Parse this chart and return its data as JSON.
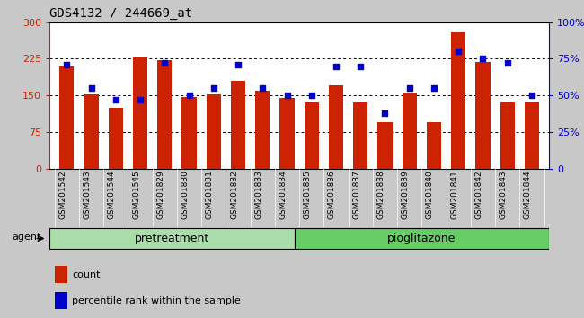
{
  "title": "GDS4132 / 244669_at",
  "samples": [
    "GSM201542",
    "GSM201543",
    "GSM201544",
    "GSM201545",
    "GSM201829",
    "GSM201830",
    "GSM201831",
    "GSM201832",
    "GSM201833",
    "GSM201834",
    "GSM201835",
    "GSM201836",
    "GSM201837",
    "GSM201838",
    "GSM201839",
    "GSM201840",
    "GSM201841",
    "GSM201842",
    "GSM201843",
    "GSM201844"
  ],
  "counts": [
    210,
    152,
    125,
    228,
    222,
    147,
    153,
    180,
    160,
    145,
    135,
    170,
    135,
    95,
    155,
    95,
    280,
    218,
    135,
    135
  ],
  "percentiles": [
    71,
    55,
    47,
    47,
    72,
    50,
    55,
    71,
    55,
    50,
    50,
    70,
    70,
    38,
    55,
    55,
    80,
    75,
    72,
    50
  ],
  "bar_color": "#cc2200",
  "dot_color": "#0000cc",
  "plot_bg": "#ffffff",
  "fig_bg": "#c8c8c8",
  "tick_area_bg": "#b8b8b8",
  "ylim_left": [
    0,
    300
  ],
  "ylim_right": [
    0,
    100
  ],
  "yticks_left": [
    0,
    75,
    150,
    225,
    300
  ],
  "yticks_right": [
    0,
    25,
    50,
    75,
    100
  ],
  "ytick_labels_left": [
    "0",
    "75",
    "150",
    "225",
    "300"
  ],
  "ytick_labels_right": [
    "0",
    "25%",
    "50%",
    "75%",
    "100%"
  ],
  "pretreatment_count": 10,
  "pioglitazone_label": "pioglitazone",
  "pretreatment_label": "pretreatment",
  "agent_label": "agent",
  "legend_count_label": "count",
  "legend_pct_label": "percentile rank within the sample",
  "grid_color": "#000000",
  "title_fontsize": 10,
  "axis_fontsize": 8,
  "tick_fontsize": 7,
  "group_fontsize": 9,
  "bar_width": 0.6,
  "pretreat_color": "#aaeebb",
  "pio_color": "#88dd88"
}
